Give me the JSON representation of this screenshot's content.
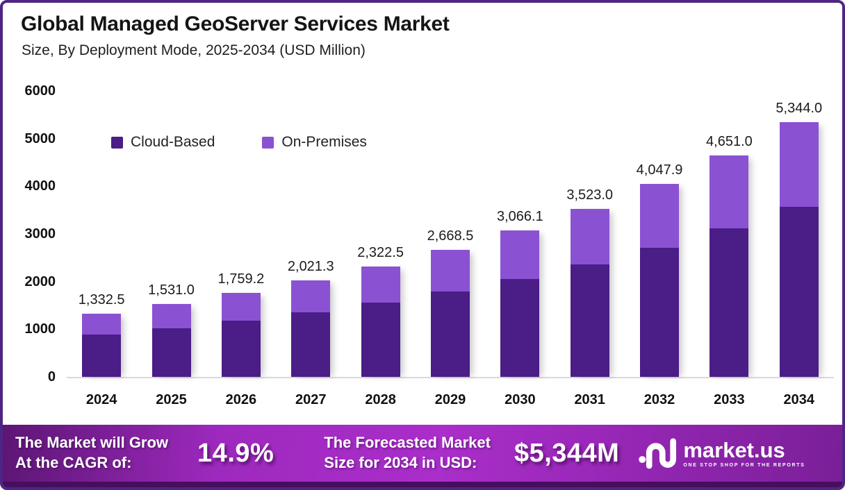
{
  "header": {
    "title": "Global Managed GeoServer Services Market",
    "subtitle": "Size, By Deployment Mode, 2025-2034 (USD Million)"
  },
  "y_axis": {
    "ticks": [
      "6000",
      "5000",
      "4000",
      "3000",
      "2000",
      "1000",
      "0"
    ]
  },
  "chart_data": {
    "type": "bar",
    "stacked": true,
    "title": "Global Managed GeoServer Services Market Size, By Deployment Mode, 2025-2034 (USD Million)",
    "categories": [
      "2024",
      "2025",
      "2026",
      "2027",
      "2028",
      "2029",
      "2030",
      "2031",
      "2032",
      "2033",
      "2034"
    ],
    "series": [
      {
        "name": "Cloud-Based",
        "color": "#4A1D87",
        "values": [
          891,
          1024,
          1177,
          1352,
          1554,
          1785,
          2051,
          2357,
          2708,
          3112,
          3575
        ]
      },
      {
        "name": "On-Premises",
        "color": "#8B51D3",
        "values": [
          441.5,
          507.0,
          582.2,
          669.3,
          768.5,
          883.5,
          1015.1,
          1166.0,
          1339.9,
          1539.0,
          1769.0
        ]
      }
    ],
    "totals": [
      1332.5,
      1531.0,
      1759.2,
      2021.3,
      2322.5,
      2668.5,
      3066.1,
      3523.0,
      4047.9,
      4651.0,
      5344.0
    ],
    "total_labels": [
      "1,332.5",
      "1,531.0",
      "1,759.2",
      "2,021.3",
      "2,322.5",
      "2,668.5",
      "3,066.1",
      "3,523.0",
      "4,047.9",
      "4,651.0",
      "5,344.0"
    ],
    "xlabel": "",
    "ylabel": "",
    "ylim": [
      0,
      6000
    ],
    "grid": false,
    "legend_position": "top-left-inside"
  },
  "colors": {
    "cloud_based": "#4A1D87",
    "on_premises": "#8B51D3",
    "frame_border": "#4F2583",
    "baseline": "#D9D9D9",
    "footer_center": "#AA2ECA",
    "footer_edge": "#5C1674",
    "footer_strip": "#470E5E"
  },
  "footer": {
    "cagr_label_line1": "The Market will Grow",
    "cagr_label_line2": "At the CAGR of:",
    "cagr_value": "14.9%",
    "forecast_label_line1": "The Forecasted Market",
    "forecast_label_line2": "Size for 2034 in USD:",
    "forecast_value": "$5,344M",
    "brand": {
      "logo_icon": "marketus-logo-icon",
      "name": "market.us",
      "tagline": "ONE STOP SHOP FOR THE REPORTS"
    }
  }
}
